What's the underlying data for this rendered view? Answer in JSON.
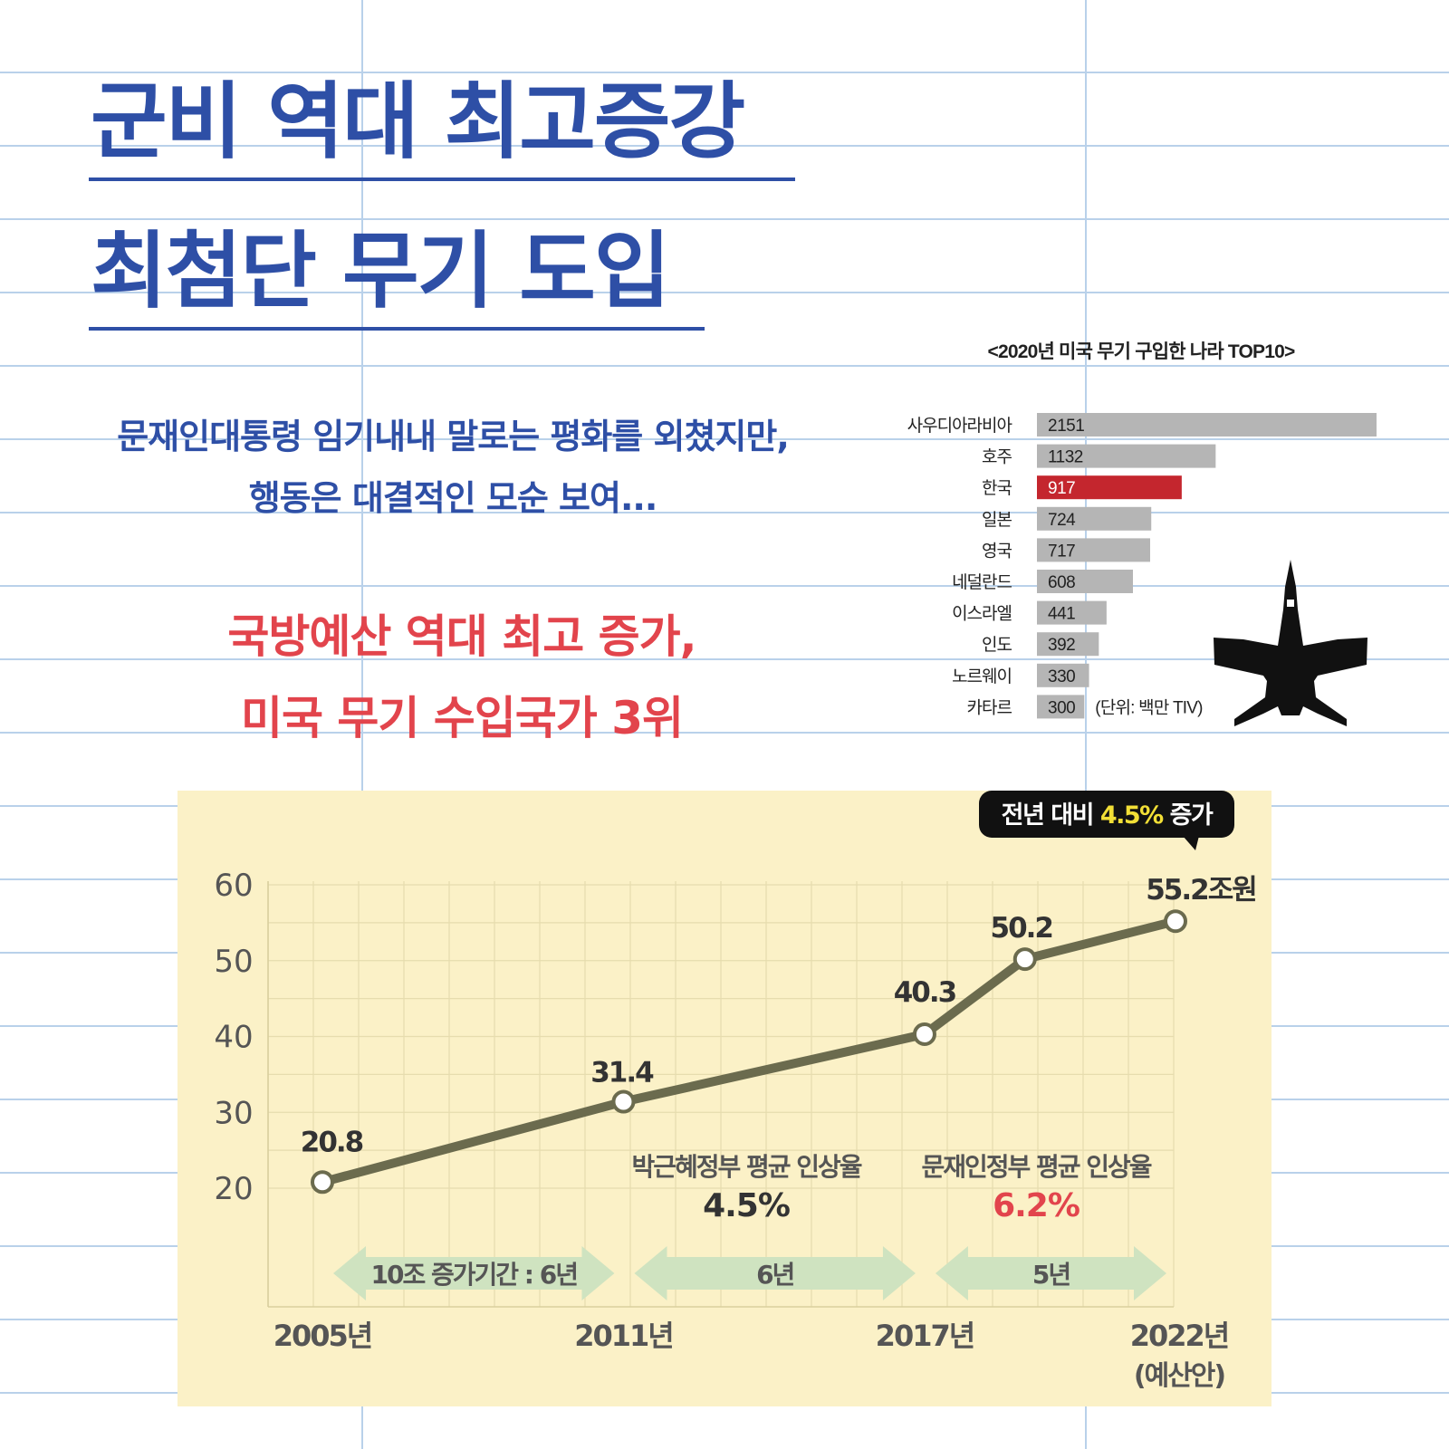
{
  "headline": {
    "line1": "군비 역대 최고증강",
    "line2": "최첨단 무기 도입"
  },
  "subtitle": {
    "line1": "문재인대통령 임기내내 말로는 평화를 외쳤지만,",
    "line2": "행동은 대결적인 모순 보여..."
  },
  "highlight": {
    "line1": "국방예산 역대 최고 증가,",
    "line2": "미국 무기 수입국가 3위"
  },
  "colors": {
    "title_blue": "#2e4fa6",
    "highlight_red": "#e2444c",
    "bar_gray": "#b5b5b5",
    "bar_highlight": "#c4262e",
    "line_chart_bg": "#fbf1c7",
    "line_color": "#6b6b4e",
    "arrow_green": "#cfe3c0"
  },
  "chart_data": [
    {
      "type": "bar",
      "orientation": "horizontal",
      "title": "<2020년 미국 무기 구입한 나라 TOP10>",
      "categories": [
        "사우디아라비아",
        "호주",
        "한국",
        "일본",
        "영국",
        "네덜란드",
        "이스라엘",
        "인도",
        "노르웨이",
        "카타르"
      ],
      "values": [
        2151,
        1132,
        917,
        724,
        717,
        608,
        441,
        392,
        330,
        300
      ],
      "value_labels": [
        "2151",
        "1132",
        "917",
        "724",
        "717",
        "608",
        "441",
        "392",
        "330",
        "300"
      ],
      "highlight_category": "한국",
      "unit_note": "(단위: 백만 TIV)",
      "decoration": "fighter-jet-icon"
    },
    {
      "type": "line",
      "x": [
        2005,
        2011,
        2017,
        2019,
        2022
      ],
      "values": [
        20.8,
        31.4,
        40.3,
        50.2,
        55.2
      ],
      "point_labels": [
        "20.8",
        "31.4",
        "40.3",
        "50.2",
        "55.2조원"
      ],
      "ylim": [
        20,
        60
      ],
      "yticks": [
        "20",
        "30",
        "40",
        "50",
        "60"
      ],
      "xticks": [
        {
          "x": 2005,
          "label": "2005년"
        },
        {
          "x": 2011,
          "label": "2011년"
        },
        {
          "x": 2017,
          "label": "2017년"
        },
        {
          "x": 2022,
          "label": "2022년",
          "sub": "(예산안)"
        }
      ],
      "grid": true,
      "callout": {
        "prefix": "전년 대비 ",
        "value": "4.5%",
        "suffix": " 증가"
      },
      "annotations": [
        {
          "label": "박근혜정부 평균 인상율",
          "value": "4.5%"
        },
        {
          "label": "문재인정부 평균 인상율",
          "value": "6.2%"
        }
      ],
      "periods": [
        {
          "from": 2005,
          "to": 2011,
          "label": "10조 증가기간 : 6년"
        },
        {
          "from": 2011,
          "to": 2017,
          "label": "6년"
        },
        {
          "from": 2017,
          "to": 2022,
          "label": "5년"
        }
      ]
    }
  ]
}
